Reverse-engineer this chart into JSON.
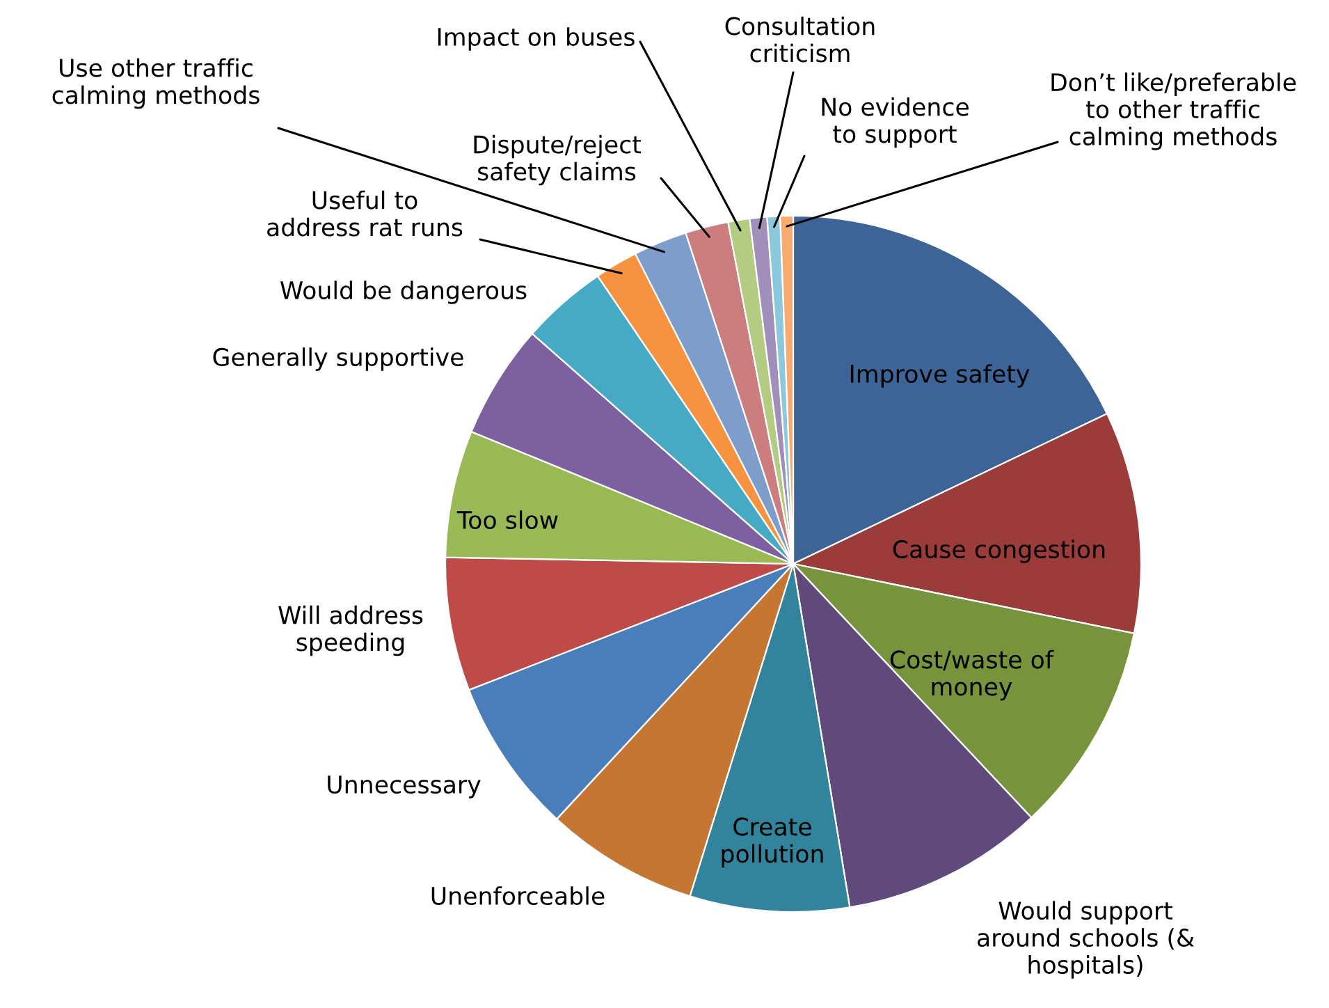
{
  "chart_data": {
    "type": "pie",
    "categories": [
      "Improve safety",
      "Cause congestion",
      "Cost/waste of\nmoney",
      "Would support\naround schools (&\nhospitals)",
      "Create\npollution",
      "Unenforceable",
      "Unnecessary",
      "Will address\nspeeding",
      "Too slow",
      "Generally supportive",
      "Would be dangerous",
      "Useful to\naddress rat runs",
      "Use other traffic\ncalming methods",
      "Dispute/reject\nsafety claims",
      "Impact on buses",
      "Consultation\ncriticism",
      "No evidence\nto support",
      "Don’t like/preferable\nto other traffic\ncalming methods"
    ],
    "values": [
      17.9,
      10.3,
      9.8,
      9.4,
      7.4,
      7.1,
      7.2,
      6.2,
      5.9,
      5.3,
      4.0,
      2.0,
      2.5,
      2.0,
      1.0,
      0.8,
      0.6,
      0.6
    ],
    "colors": [
      "#3C6496",
      "#9B3B3A",
      "#77933C",
      "#604A7B",
      "#31849B",
      "#C57633",
      "#4A7EBB",
      "#BE4B48",
      "#98B954",
      "#7D60A0",
      "#46AAC5",
      "#F69240",
      "#7F9DCB",
      "#CB7E7D",
      "#B3CC82",
      "#A08FBA",
      "#8BC8DC",
      "#F9AB6F"
    ]
  }
}
